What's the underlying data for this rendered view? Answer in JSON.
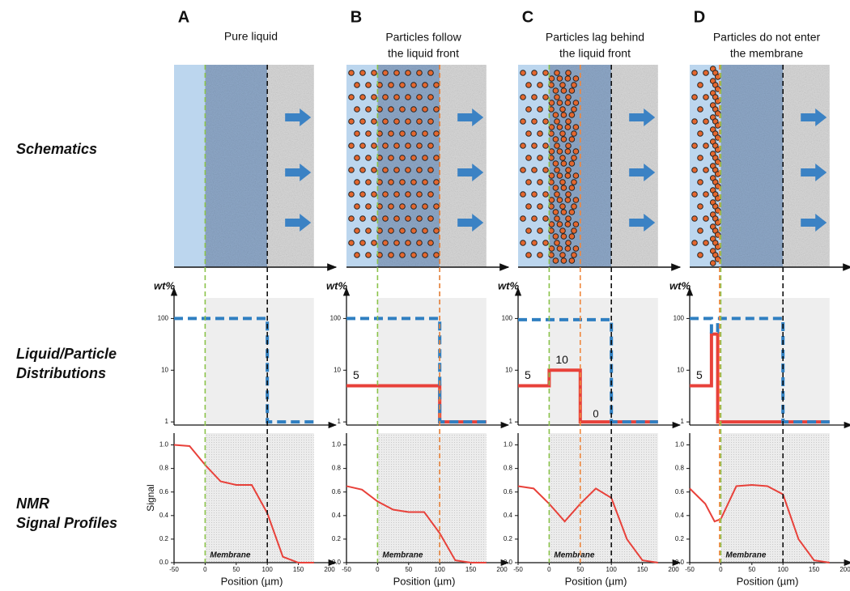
{
  "row_labels": [
    [
      "Schematics"
    ],
    [
      "Liquid/Particle",
      "Distributions"
    ],
    [
      "NMR",
      "Signal Profiles"
    ]
  ],
  "columns": [
    {
      "letter": "A",
      "title": [
        "Pure liquid"
      ],
      "guides": [
        {
          "x": 0,
          "color": "#8bc34a"
        },
        {
          "x": 100,
          "color": "#111111"
        }
      ]
    },
    {
      "letter": "B",
      "title": [
        "Particles follow",
        "the liquid front"
      ],
      "guides": [
        {
          "x": 0,
          "color": "#8bc34a"
        },
        {
          "x": 100,
          "color": "#111111"
        },
        {
          "x": 100,
          "color": "#f0883e"
        }
      ]
    },
    {
      "letter": "C",
      "title": [
        "Particles lag behind",
        "the liquid front"
      ],
      "guides": [
        {
          "x": 0,
          "color": "#8bc34a"
        },
        {
          "x": 100,
          "color": "#111111"
        },
        {
          "x": 50,
          "color": "#f0883e"
        }
      ]
    },
    {
      "letter": "D",
      "title": [
        "Particles do not enter",
        "the membrane"
      ],
      "guides": [
        {
          "x": 0,
          "color": "#8bc34a"
        },
        {
          "x": 100,
          "color": "#111111"
        },
        {
          "x": -2,
          "color": "#f0883e"
        }
      ]
    }
  ],
  "chart_data": [
    {
      "type": "step",
      "ylabel": "wt%",
      "log_y": true,
      "xlim": [
        -50,
        200
      ],
      "ylim": [
        0.87,
        250
      ],
      "yticks": [
        1,
        10,
        100
      ],
      "shade": [
        0,
        175
      ],
      "series": [
        {
          "color": "#2f7fc1",
          "dash": true,
          "x": [
            -50,
            100,
            100,
            175
          ],
          "values": [
            100,
            100,
            1,
            1
          ]
        }
      ]
    },
    {
      "type": "step",
      "ylabel": "wt%",
      "log_y": true,
      "xlim": [
        -50,
        200
      ],
      "ylim": [
        0.87,
        250
      ],
      "yticks": [
        1,
        10,
        100
      ],
      "shade": [
        0,
        175
      ],
      "series": [
        {
          "color": "#e8413a",
          "dash": false,
          "x": [
            -50,
            100,
            100,
            175
          ],
          "values": [
            5,
            5,
            1,
            1
          ],
          "value_labels": [
            "5",
            null,
            null,
            null
          ]
        },
        {
          "color": "#2f7fc1",
          "dash": true,
          "x": [
            -50,
            100,
            100,
            175
          ],
          "values": [
            100,
            100,
            1,
            1
          ]
        }
      ]
    },
    {
      "type": "step",
      "ylabel": "wt%",
      "log_y": true,
      "xlim": [
        -50,
        200
      ],
      "ylim": [
        0.87,
        250
      ],
      "yticks": [
        1,
        10,
        100
      ],
      "shade": [
        0,
        175
      ],
      "annotation": "0",
      "series": [
        {
          "color": "#e8413a",
          "dash": false,
          "x": [
            -50,
            0,
            0,
            50,
            50,
            175
          ],
          "values": [
            5,
            5,
            10,
            10,
            1,
            1
          ],
          "value_labels": [
            "5",
            null,
            "10",
            null,
            null,
            null
          ]
        },
        {
          "color": "#2f7fc1",
          "dash": true,
          "x": [
            -50,
            100,
            100,
            175
          ],
          "values": [
            95,
            95,
            1,
            1
          ]
        }
      ]
    },
    {
      "type": "step",
      "ylabel": "wt%",
      "log_y": true,
      "xlim": [
        -50,
        200
      ],
      "ylim": [
        0.87,
        250
      ],
      "yticks": [
        1,
        10,
        100
      ],
      "shade": [
        0,
        175
      ],
      "series": [
        {
          "color": "#e8413a",
          "dash": false,
          "x": [
            -50,
            -15,
            -15,
            -5,
            -5,
            175
          ],
          "values": [
            5,
            5,
            50,
            50,
            1,
            1
          ],
          "value_labels": [
            "5",
            null,
            null,
            null,
            null,
            null
          ]
        },
        {
          "color": "#2f7fc1",
          "dash": true,
          "x": [
            -50,
            -15,
            -15,
            -5,
            -5,
            100,
            100,
            175
          ],
          "values": [
            100,
            100,
            55,
            55,
            100,
            100,
            1,
            1
          ]
        }
      ]
    },
    {
      "type": "line",
      "xlabel": "Position (µm)",
      "ylabel": "Signal",
      "annotation": "Membrane",
      "xlim": [
        -50,
        200
      ],
      "ylim": [
        0,
        1.1
      ],
      "shade": [
        0,
        175
      ],
      "xticks": [
        -50,
        0,
        50,
        100,
        150,
        200
      ],
      "yticks": [
        {
          "value": 0,
          "label": "0.0"
        },
        {
          "value": 0.2,
          "label": "0.2"
        },
        {
          "value": 0.4,
          "label": "0.4"
        },
        {
          "value": 0.6,
          "label": "0.6"
        },
        {
          "value": 0.8,
          "label": "0.8"
        },
        {
          "value": 1,
          "label": "1.0"
        }
      ],
      "series": [
        {
          "color": "#e8413a",
          "x": [
            -50,
            -25,
            0,
            25,
            50,
            75,
            100,
            125,
            150,
            175
          ],
          "values": [
            1.0,
            0.99,
            0.83,
            0.69,
            0.66,
            0.66,
            0.42,
            0.05,
            0,
            0
          ]
        }
      ]
    },
    {
      "type": "line",
      "xlabel": "Position (µm)",
      "annotation": "Membrane",
      "xlim": [
        -50,
        200
      ],
      "ylim": [
        0,
        1.1
      ],
      "shade": [
        0,
        175
      ],
      "xticks": [
        -50,
        0,
        50,
        100,
        150,
        200
      ],
      "yticks": [
        {
          "value": 0,
          "label": "0.0"
        },
        {
          "value": 0.2,
          "label": "0.2"
        },
        {
          "value": 0.4,
          "label": "0.4"
        },
        {
          "value": 0.6,
          "label": "0.6"
        },
        {
          "value": 0.8,
          "label": "0.8"
        },
        {
          "value": 1,
          "label": "1.0"
        }
      ],
      "series": [
        {
          "color": "#e8413a",
          "x": [
            -50,
            -25,
            0,
            25,
            50,
            75,
            100,
            125,
            150,
            175
          ],
          "values": [
            0.65,
            0.62,
            0.52,
            0.45,
            0.43,
            0.43,
            0.25,
            0.02,
            0,
            0
          ]
        }
      ]
    },
    {
      "type": "line",
      "xlabel": "Position (µm)",
      "annotation": "Membrane",
      "xlim": [
        -50,
        200
      ],
      "ylim": [
        0,
        1.1
      ],
      "shade": [
        0,
        175
      ],
      "xticks": [
        -50,
        0,
        50,
        100,
        150,
        200
      ],
      "yticks": [
        {
          "value": 0,
          "label": "0.0"
        },
        {
          "value": 0.2,
          "label": "0.2"
        },
        {
          "value": 0.4,
          "label": "0.4"
        },
        {
          "value": 0.6,
          "label": "0.6"
        },
        {
          "value": 0.8,
          "label": "0.8"
        },
        {
          "value": 1,
          "label": "1.0"
        }
      ],
      "series": [
        {
          "color": "#e8413a",
          "x": [
            -50,
            -25,
            0,
            25,
            50,
            75,
            100,
            125,
            150,
            175
          ],
          "values": [
            0.65,
            0.63,
            0.5,
            0.35,
            0.5,
            0.63,
            0.55,
            0.2,
            0.02,
            0
          ]
        }
      ]
    },
    {
      "type": "line",
      "xlabel": "Position (µm)",
      "annotation": "Membrane",
      "xlim": [
        -50,
        200
      ],
      "ylim": [
        0,
        1.1
      ],
      "shade": [
        0,
        175
      ],
      "xticks": [
        -50,
        0,
        50,
        100,
        150,
        200
      ],
      "yticks": [
        {
          "value": 0,
          "label": "0.0"
        },
        {
          "value": 0.2,
          "label": "0.2"
        },
        {
          "value": 0.4,
          "label": "0.4"
        },
        {
          "value": 0.6,
          "label": "0.6"
        },
        {
          "value": 0.8,
          "label": "0.8"
        },
        {
          "value": 1,
          "label": "1.0"
        }
      ],
      "series": [
        {
          "color": "#e8413a",
          "x": [
            -50,
            -25,
            -10,
            0,
            25,
            50,
            75,
            100,
            125,
            150,
            175
          ],
          "values": [
            0.63,
            0.5,
            0.35,
            0.37,
            0.65,
            0.66,
            0.65,
            0.58,
            0.2,
            0.02,
            0
          ]
        }
      ]
    }
  ]
}
